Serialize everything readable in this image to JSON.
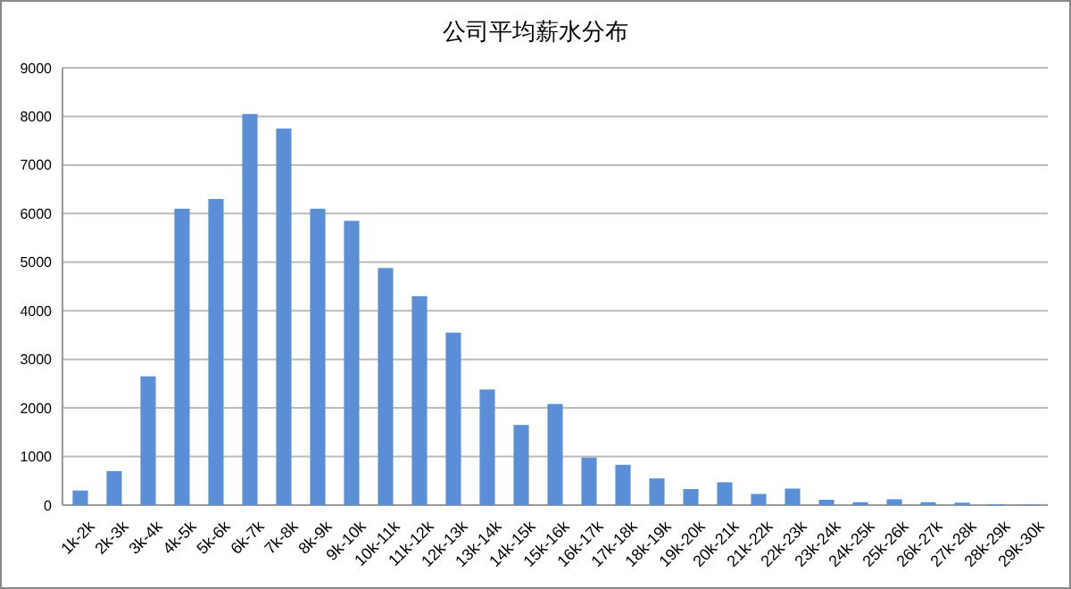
{
  "chart_data": {
    "type": "bar",
    "title": "公司平均薪水分布",
    "categories": [
      "1k-2k",
      "2k-3k",
      "3k-4k",
      "4k-5k",
      "5k-6k",
      "6k-7k",
      "7k-8k",
      "8k-9k",
      "9k-10k",
      "10k-11k",
      "11k-12k",
      "12k-13k",
      "13k-14k",
      "14k-15k",
      "15k-16k",
      "16k-17k",
      "17k-18k",
      "18k-19k",
      "19k-20k",
      "20k-21k",
      "21k-22k",
      "22k-23k",
      "23k-24k",
      "24k-25k",
      "25k-26k",
      "26k-27k",
      "27k-28k",
      "28k-29k",
      "29k-30k"
    ],
    "values": [
      300,
      700,
      2650,
      6100,
      6300,
      8050,
      7750,
      6100,
      5850,
      4880,
      4300,
      3550,
      2380,
      1650,
      2080,
      980,
      830,
      550,
      330,
      470,
      230,
      340,
      110,
      60,
      120,
      60,
      50,
      20,
      10
    ],
    "color": "#5a8fd8",
    "ylim": [
      0,
      9000
    ],
    "yticks": [
      0,
      1000,
      2000,
      3000,
      4000,
      5000,
      6000,
      7000,
      8000,
      9000
    ],
    "grid": "y"
  }
}
